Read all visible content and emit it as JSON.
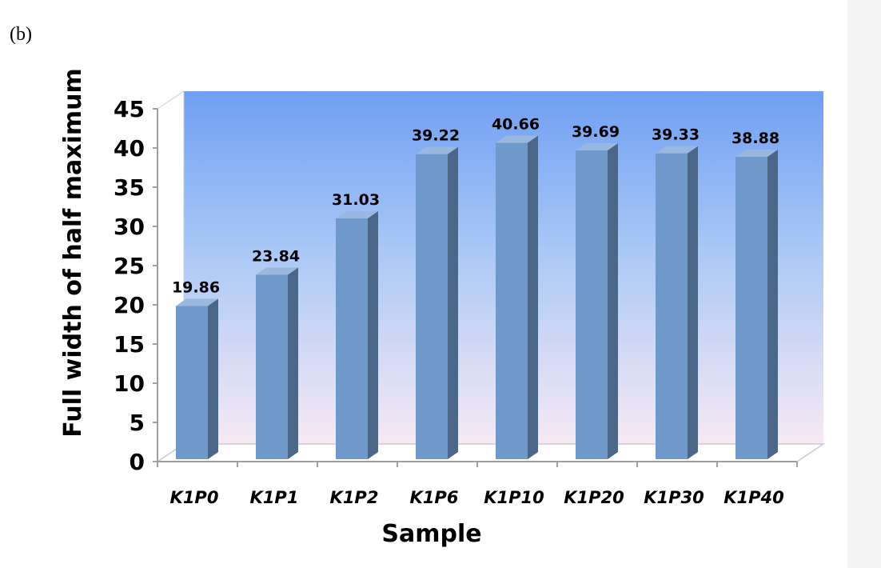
{
  "panel_label": "(b)",
  "colors": {
    "bar_front": "#7099CB",
    "bar_side": "#4A6688",
    "bar_top": "#9AB8DE",
    "wall_top": "#6F9EF2",
    "wall_mid": "#A9C8F6",
    "wall_bottom": "#F7E9F3",
    "axis": "#9AA0A6"
  },
  "chart_data": {
    "type": "bar",
    "categories": [
      "K1P0",
      "K1P1",
      "K1P2",
      "K1P6",
      "K1P10",
      "K1P20",
      "K1P30",
      "K1P40"
    ],
    "values": [
      19.86,
      23.84,
      31.03,
      39.22,
      40.66,
      39.69,
      39.33,
      38.88
    ],
    "value_labels": [
      "19.86",
      "23.84",
      "31.03",
      "39.22",
      "40.66",
      "39.69",
      "39.33",
      "38.88"
    ],
    "xlabel": "Sample",
    "ylabel": "Full width of half maximum",
    "ylim": [
      0,
      45
    ],
    "yticks": [
      "0",
      "5",
      "10",
      "15",
      "20",
      "25",
      "30",
      "35",
      "40",
      "45"
    ],
    "style": "3d-column",
    "grid": false,
    "legend": "none"
  }
}
